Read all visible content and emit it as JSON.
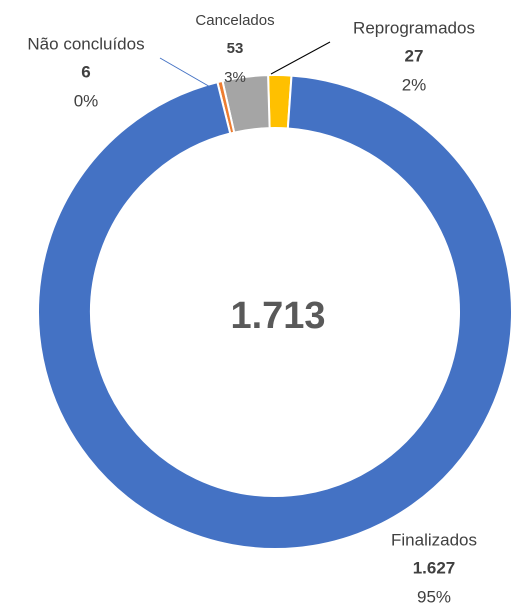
{
  "chart_data": {
    "type": "donut",
    "categories": [
      "Finalizados",
      "Não concluídos",
      "Cancelados",
      "Reprogramados"
    ],
    "values": [
      1627,
      6,
      53,
      27
    ],
    "value_labels": [
      "1.627",
      "6",
      "53",
      "27"
    ],
    "percents": [
      95,
      0,
      3,
      2
    ],
    "percent_labels": [
      "95%",
      "0%",
      "3%",
      "2%"
    ],
    "colors": [
      "#4472C4",
      "#ED7D31",
      "#A5A5A5",
      "#FFC000"
    ],
    "total": 1713,
    "total_label": "1.713"
  }
}
